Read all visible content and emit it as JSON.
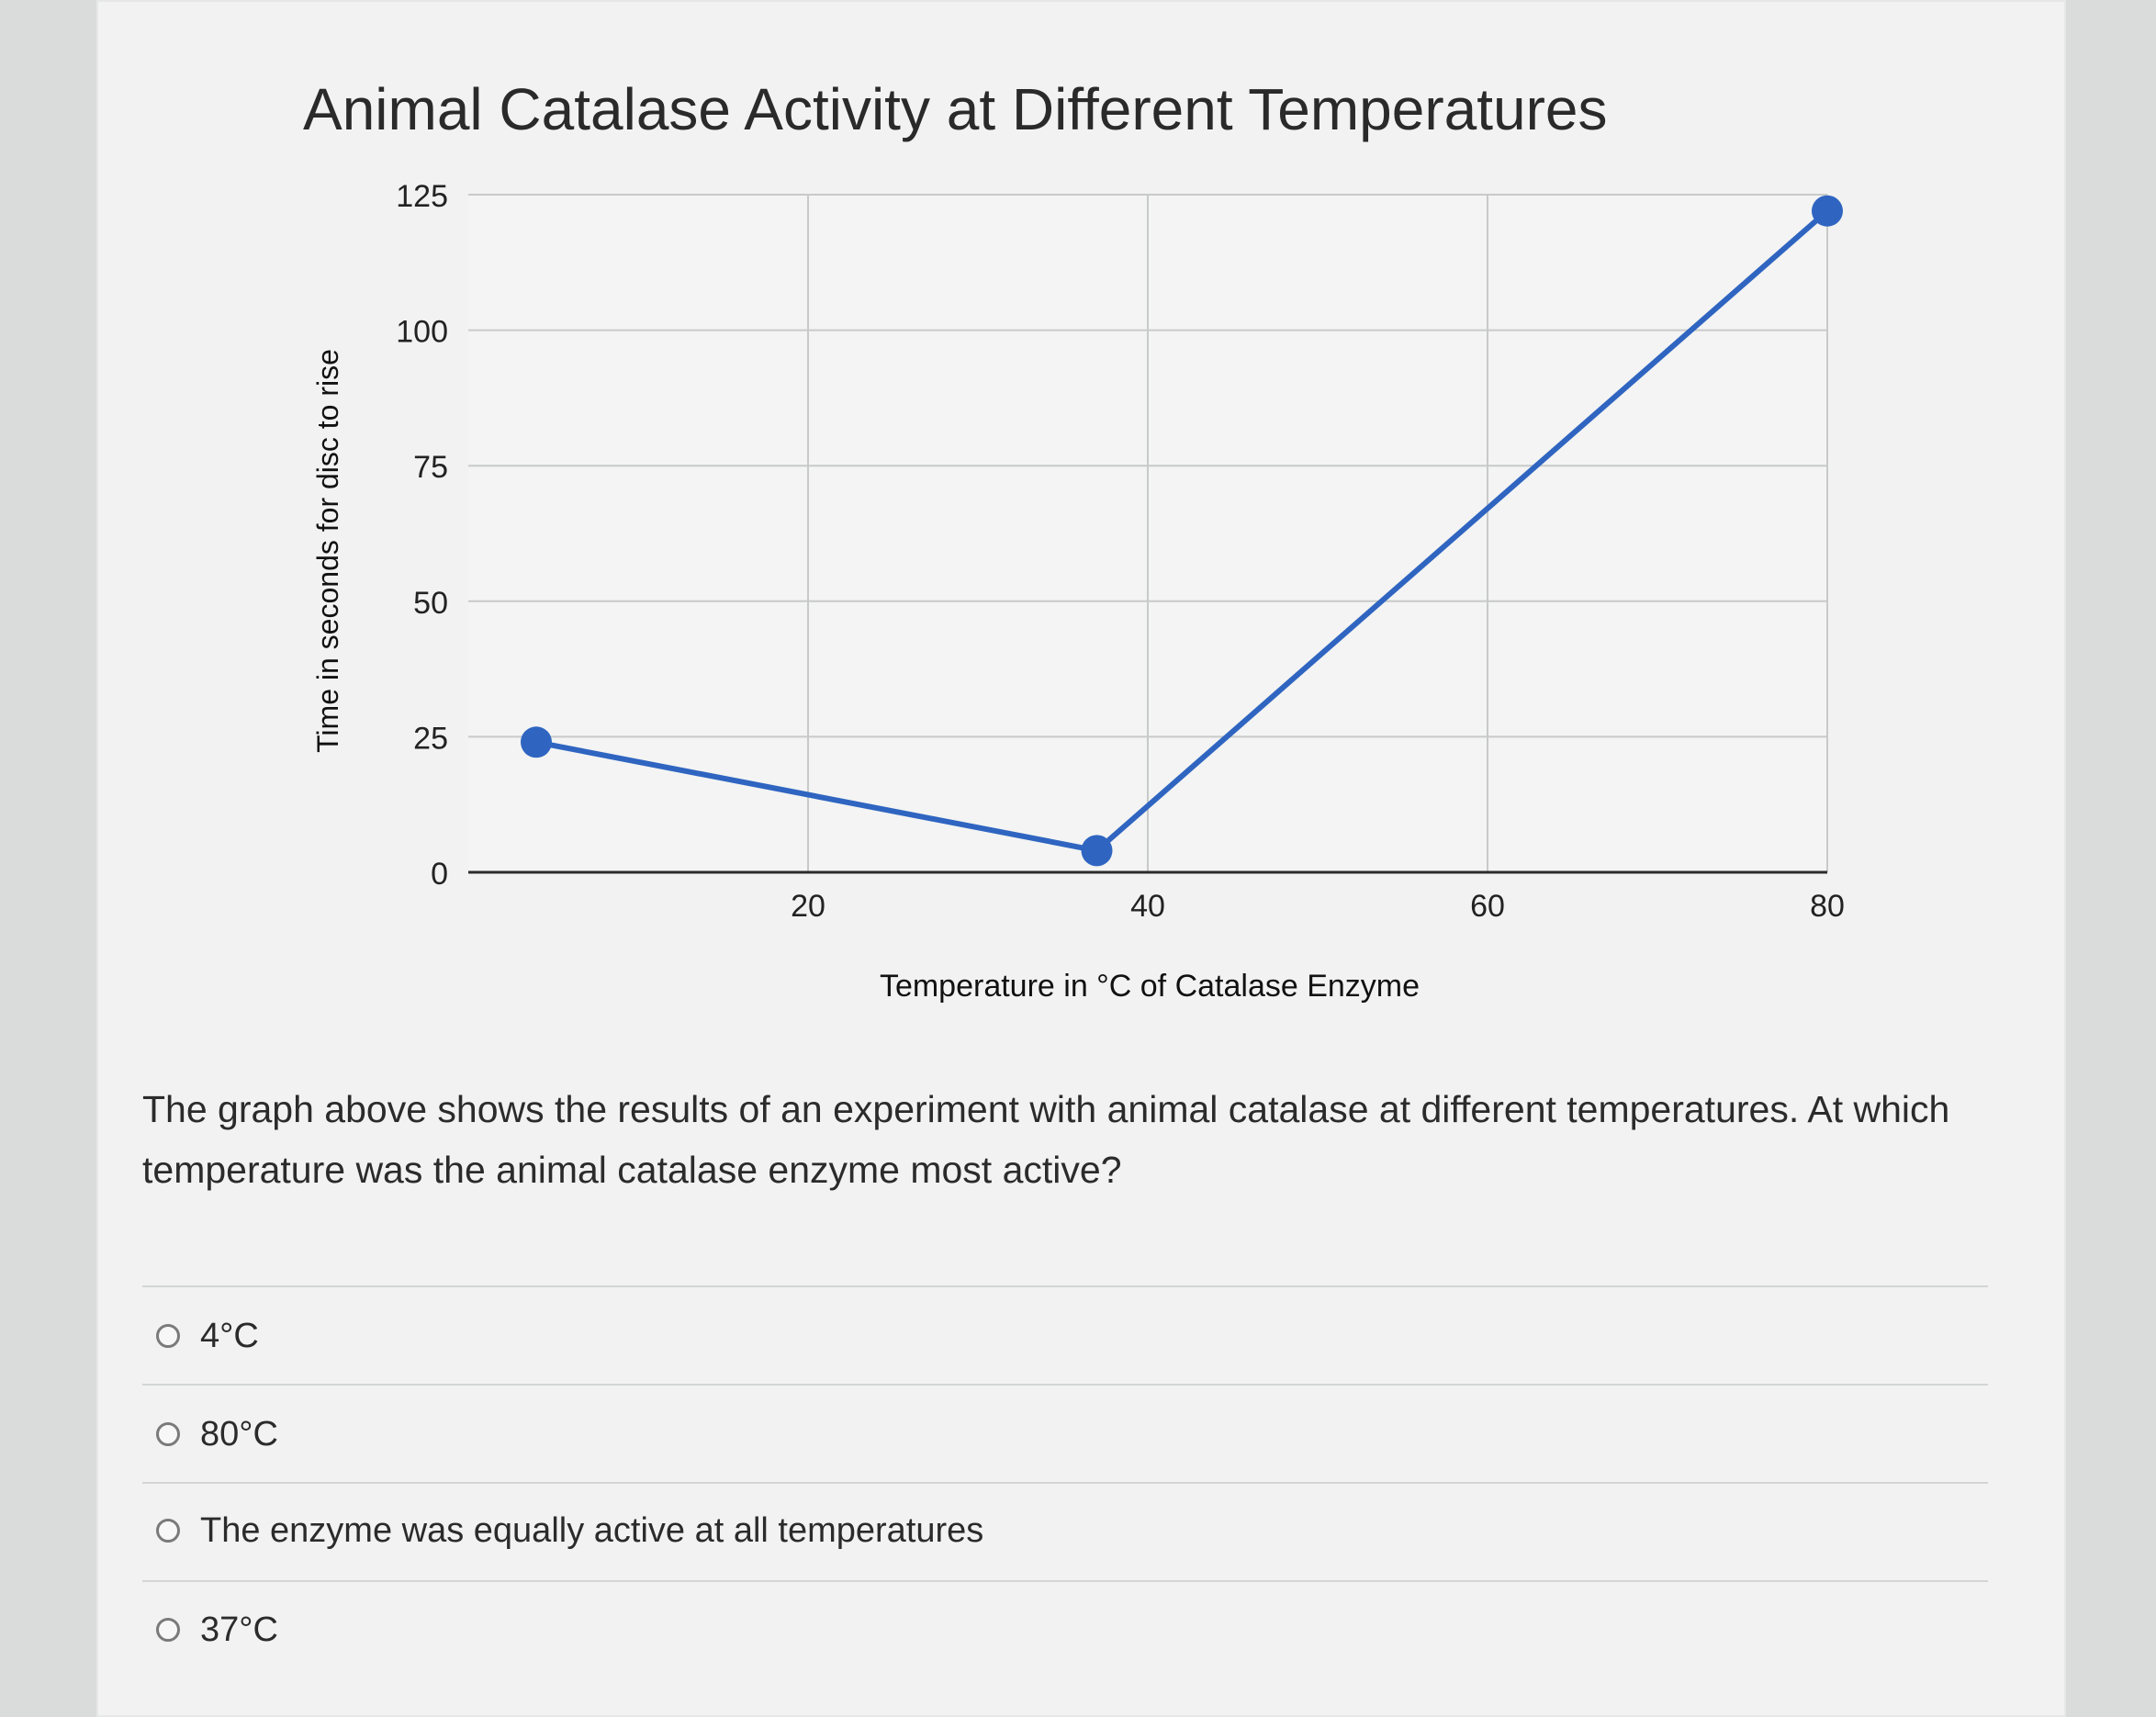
{
  "chart_data": {
    "type": "line",
    "title": "Animal Catalase Activity at Different Temperatures",
    "xlabel": "Temperature in °C of Catalase Enzyme",
    "ylabel": "Time in seconds for disc to rise",
    "xlim": [
      0,
      80
    ],
    "ylim": [
      0,
      125
    ],
    "x_ticks": [
      20,
      40,
      60,
      80
    ],
    "y_ticks": [
      0,
      25,
      50,
      75,
      100,
      125
    ],
    "grid": true,
    "series": [
      {
        "x": [
          4,
          37,
          80
        ],
        "y": [
          24,
          4,
          122
        ],
        "color": "#2f65c1"
      }
    ]
  },
  "question": {
    "text": "The graph above shows the results of an experiment with animal catalase at different temperatures. At which temperature was the animal catalase enzyme most active?"
  },
  "options": [
    {
      "label": "4°C"
    },
    {
      "label": "80°C"
    },
    {
      "label": "The enzyme was equally active at all temperatures"
    },
    {
      "label": "37°C"
    }
  ]
}
